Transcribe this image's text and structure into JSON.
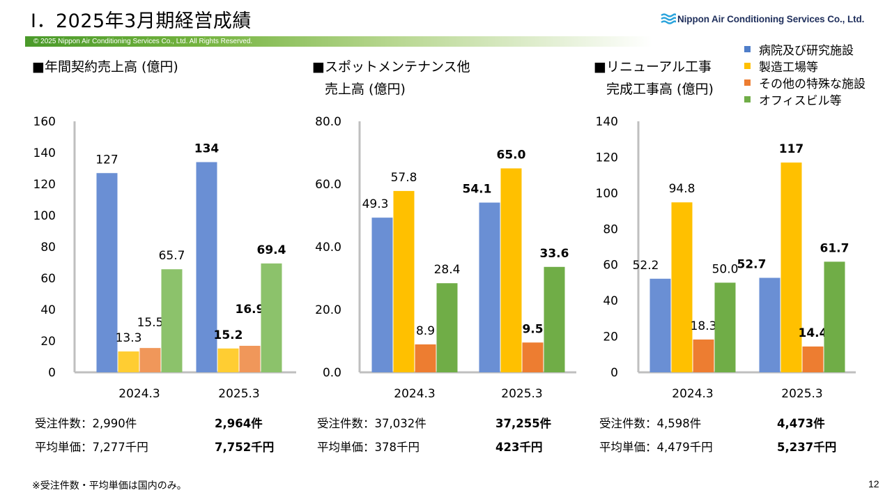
{
  "header": {
    "title": "Ⅰ．2025年3月期経営成績",
    "copyright": "© 2025 Nippon Air Conditioning Services Co., Ltd. All Rights Reserved.",
    "logo_text": "Nippon Air Conditioning Services Co., Ltd."
  },
  "legend": [
    {
      "label": "病院及び研究施設",
      "color": "#6a8fd4"
    },
    {
      "label": "製造工場等",
      "color": "#ffc000"
    },
    {
      "label": "その他の特殊な施設",
      "color": "#ed7d31"
    },
    {
      "label": "オフィスビル等",
      "color": "#70ad47"
    }
  ],
  "chart_data": [
    {
      "type": "bar",
      "title": "■年間契約売上高 (億円)",
      "categories": [
        "2024.3",
        "2025.3"
      ],
      "ylim": [
        0,
        160
      ],
      "yticks": [
        "0",
        "20",
        "40",
        "60",
        "80",
        "100",
        "120",
        "140",
        "160"
      ],
      "series": [
        {
          "name": "病院及び研究施設",
          "values": [
            127,
            134
          ],
          "labels": [
            "127",
            "134"
          ],
          "color": "#6a8fd4"
        },
        {
          "name": "製造工場等",
          "values": [
            13.3,
            15.2
          ],
          "labels": [
            "13.3",
            "15.2"
          ],
          "color": "#ffcd32"
        },
        {
          "name": "その他の特殊な施設",
          "values": [
            15.5,
            16.9
          ],
          "labels": [
            "15.5",
            "16.9"
          ],
          "color": "#f0975a"
        },
        {
          "name": "オフィスビル等",
          "values": [
            65.7,
            69.4
          ],
          "labels": [
            "65.7",
            "69.4"
          ],
          "color": "#8cc26b"
        }
      ],
      "stats": [
        {
          "prev": "受注件数：2,990件",
          "cur": "2,964件"
        },
        {
          "prev": "平均単価：7,277千円",
          "cur": "7,752千円"
        }
      ]
    },
    {
      "type": "bar",
      "title": "■スポットメンテナンス他",
      "title_line2": "売上高 (億円)",
      "categories": [
        "2024.3",
        "2025.3"
      ],
      "ylim": [
        0,
        80
      ],
      "yticks": [
        "0.0",
        "20.0",
        "40.0",
        "60.0",
        "80.0"
      ],
      "series": [
        {
          "name": "病院及び研究施設",
          "values": [
            49.3,
            54.1
          ],
          "labels": [
            "49.3",
            "54.1"
          ],
          "color": "#6a8fd4"
        },
        {
          "name": "製造工場等",
          "values": [
            57.8,
            65.0
          ],
          "labels": [
            "57.8",
            "65.0"
          ],
          "color": "#ffc000"
        },
        {
          "name": "その他の特殊な施設",
          "values": [
            8.9,
            9.5
          ],
          "labels": [
            "8.9",
            "9.5"
          ],
          "color": "#ed7d31"
        },
        {
          "name": "オフィスビル等",
          "values": [
            28.4,
            33.6
          ],
          "labels": [
            "28.4",
            "33.6"
          ],
          "color": "#70ad47"
        }
      ],
      "stats": [
        {
          "prev": "受注件数：37,032件",
          "cur": "37,255件"
        },
        {
          "prev": "平均単価：378千円",
          "cur": "423千円"
        }
      ]
    },
    {
      "type": "bar",
      "title": "■リニューアル工事",
      "title_line2": "完成工事高 (億円)",
      "categories": [
        "2024.3",
        "2025.3"
      ],
      "ylim": [
        0,
        140
      ],
      "yticks": [
        "0",
        "20",
        "40",
        "60",
        "80",
        "100",
        "120",
        "140"
      ],
      "series": [
        {
          "name": "病院及び研究施設",
          "values": [
            52.2,
            52.7
          ],
          "labels": [
            "52.2",
            "52.7"
          ],
          "color": "#6a8fd4"
        },
        {
          "name": "製造工場等",
          "values": [
            94.8,
            117
          ],
          "labels": [
            "94.8",
            "117"
          ],
          "color": "#ffc000"
        },
        {
          "name": "その他の特殊な施設",
          "values": [
            18.3,
            14.4
          ],
          "labels": [
            "18.3",
            "14.4"
          ],
          "color": "#ed7d31"
        },
        {
          "name": "オフィスビル等",
          "values": [
            50.0,
            61.7
          ],
          "labels": [
            "50.0",
            "61.7"
          ],
          "color": "#70ad47"
        }
      ],
      "stats": [
        {
          "prev": "受注件数：4,598件",
          "cur": "4,473件"
        },
        {
          "prev": "平均単価：4,479千円",
          "cur": "5,237千円"
        }
      ]
    }
  ],
  "footer": {
    "note": "※受注件数・平均単価は国内のみ。",
    "page_number": "12"
  }
}
